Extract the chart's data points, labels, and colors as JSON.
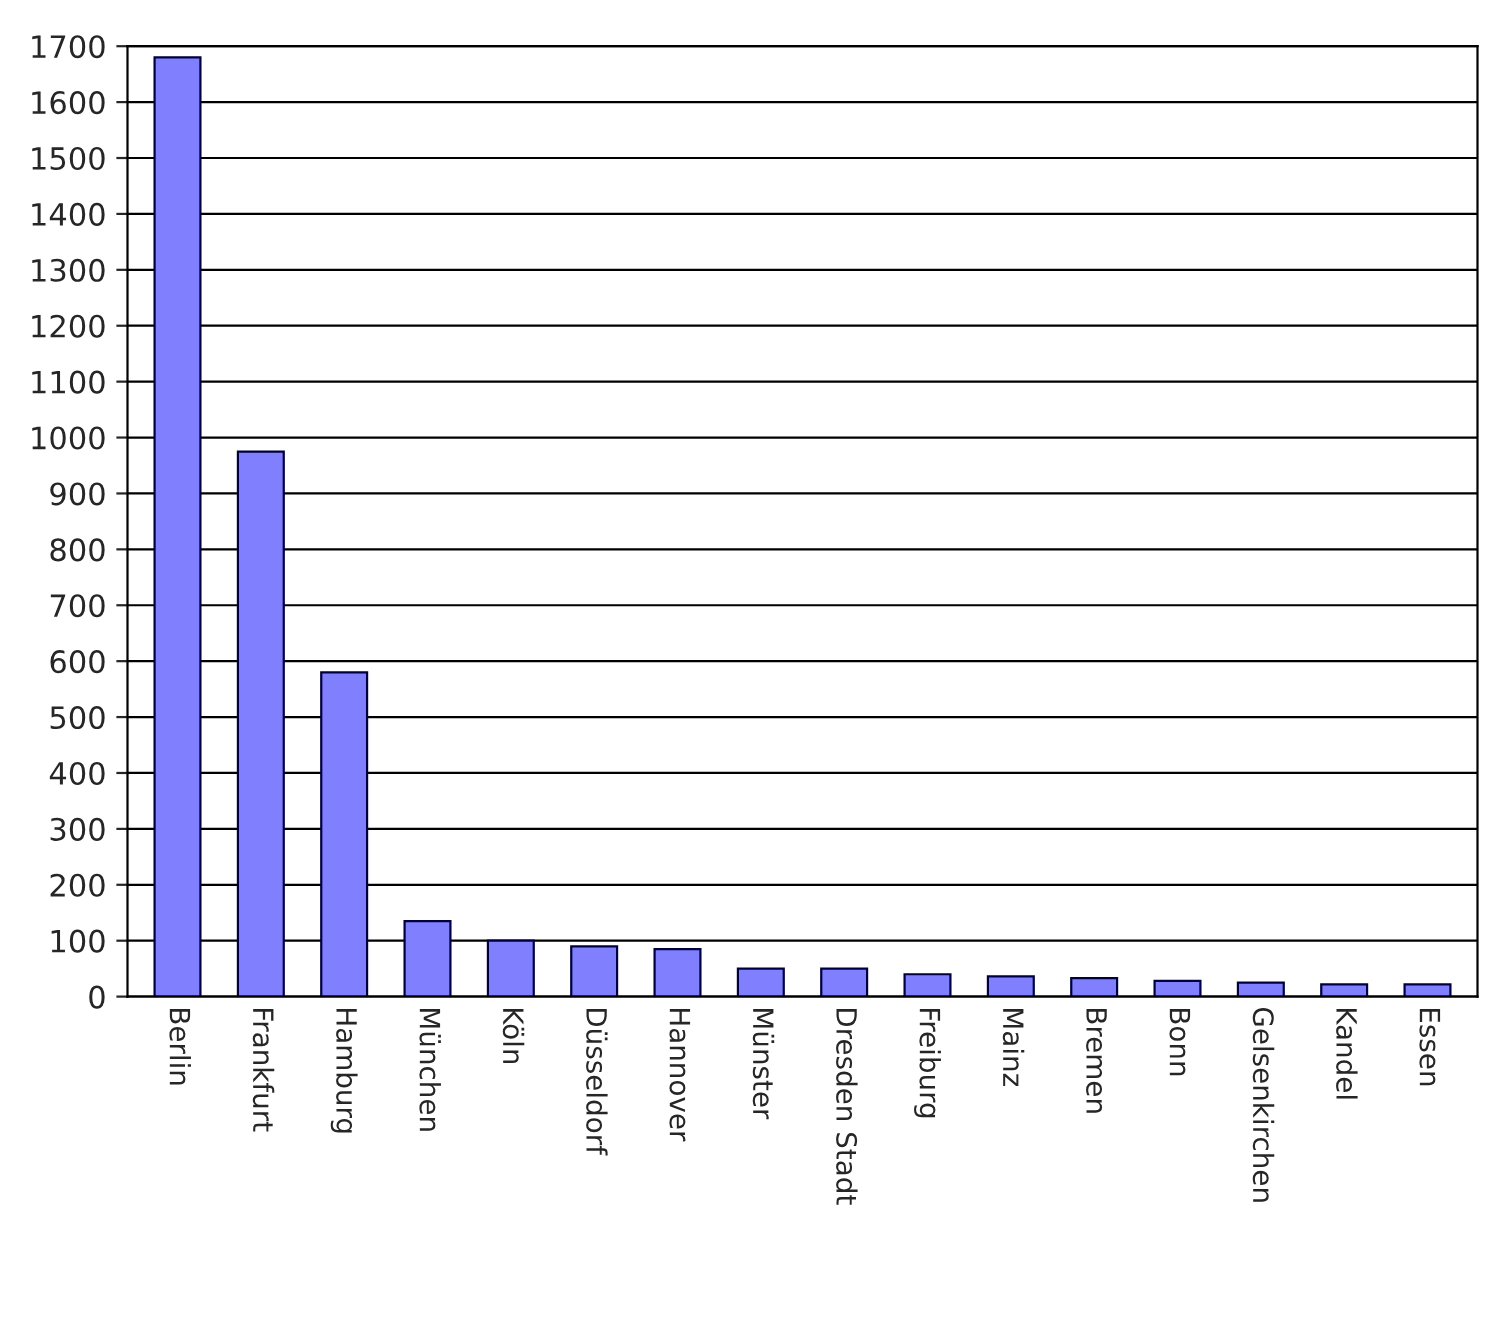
{
  "chart_data": {
    "type": "bar",
    "categories": [
      "Berlin",
      "Frankfurt",
      "Hamburg",
      "München",
      "Köln",
      "Düsseldorf",
      "Hannover",
      "Münster",
      "Dresden Stadt",
      "Freiburg",
      "Mainz",
      "Bremen",
      "Bonn",
      "Gelsenkirchen",
      "Kandel",
      "Essen"
    ],
    "values": [
      1680,
      975,
      580,
      135,
      100,
      90,
      85,
      50,
      50,
      40,
      36,
      33,
      28,
      25,
      22,
      22
    ],
    "color": "#8080ff",
    "ylim": [
      0,
      1700
    ],
    "yticks": [
      0,
      100,
      200,
      300,
      400,
      500,
      600,
      700,
      800,
      900,
      1000,
      1100,
      1200,
      1300,
      1400,
      1500,
      1600,
      1700
    ],
    "grid": "y"
  }
}
